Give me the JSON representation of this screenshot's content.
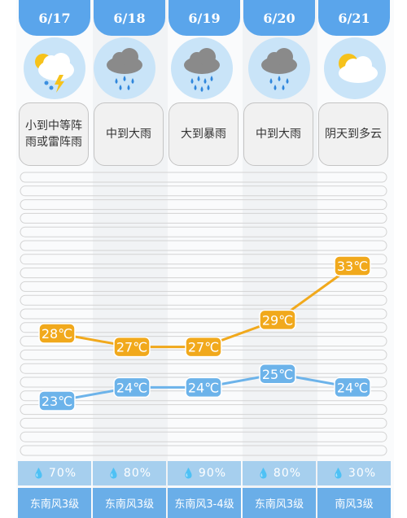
{
  "days": [
    {
      "date": "6/17",
      "icon": "thunderstorm-icon",
      "desc": "小到中等阵雨或雷阵雨",
      "high": 28,
      "low": 23,
      "high_label": "28℃",
      "low_label": "23℃",
      "rain": "70%",
      "wind": "东南风3级"
    },
    {
      "date": "6/18",
      "icon": "rain-icon",
      "desc": "中到大雨",
      "high": 27,
      "low": 24,
      "high_label": "27℃",
      "low_label": "24℃",
      "rain": "80%",
      "wind": "东南风3级"
    },
    {
      "date": "6/19",
      "icon": "rain-icon",
      "desc": "大到暴雨",
      "high": 27,
      "low": 24,
      "high_label": "27℃",
      "low_label": "24℃",
      "rain": "90%",
      "wind": "东南风3-4级"
    },
    {
      "date": "6/20",
      "icon": "rain-icon",
      "desc": "中到大雨",
      "high": 29,
      "low": 25,
      "high_label": "29℃",
      "low_label": "25℃",
      "rain": "80%",
      "wind": "东南风3级"
    },
    {
      "date": "6/21",
      "icon": "partly-cloudy-icon",
      "desc": "阴天到多云",
      "high": 33,
      "low": 24,
      "high_label": "33℃",
      "low_label": "24℃",
      "rain": "30%",
      "wind": "南风3级"
    }
  ],
  "colors": {
    "date_tab": "#5aa5eb",
    "high_line": "#f1a91c",
    "low_line": "#6cb3ea",
    "rain_bg": "#a6cfee",
    "wind_bg": "#6aaee8",
    "icon_bg": "#c9e4f8"
  }
}
